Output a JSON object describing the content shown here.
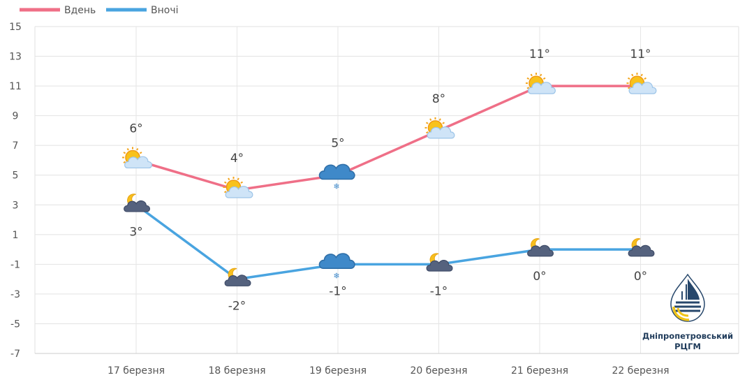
{
  "chart_data": {
    "type": "line",
    "categories": [
      "17 березня",
      "18 березня",
      "19 березня",
      "20 березня",
      "21 березня",
      "22 березня"
    ],
    "series": [
      {
        "name": "Вдень",
        "color": "#ef6f87",
        "values": [
          6,
          4,
          5,
          8,
          11,
          11
        ],
        "labels": [
          "6°",
          "4°",
          "5°",
          "8°",
          "11°",
          "11°"
        ],
        "icons": [
          "sun-cloud-icon",
          "sun-cloud-icon",
          "snow-cloud-icon",
          "sun-cloud-icon",
          "sun-cloud-icon",
          "sun-cloud-icon"
        ]
      },
      {
        "name": "Вночі",
        "color": "#49a4e0",
        "values": [
          3,
          -2,
          -1,
          -1,
          0,
          0
        ],
        "labels": [
          "3°",
          "-2°",
          "-1°",
          "-1°",
          "0°",
          "0°"
        ],
        "icons": [
          "moon-cloud-icon",
          "moon-cloud-icon",
          "snow-cloud-icon",
          "moon-cloud-icon",
          "moon-cloud-icon",
          "moon-cloud-icon"
        ]
      }
    ],
    "yticks": [
      15,
      13,
      11,
      9,
      7,
      5,
      3,
      1,
      -1,
      -3,
      -5,
      -7
    ],
    "ylim": [
      -7,
      15
    ],
    "grid": true,
    "legend_position": "top-left",
    "title": "",
    "xlabel": "",
    "ylabel": ""
  },
  "brand": {
    "name_line1": "Дніпропетровський",
    "name_line2": "РЦГМ",
    "logo": "drop-logo-icon"
  }
}
